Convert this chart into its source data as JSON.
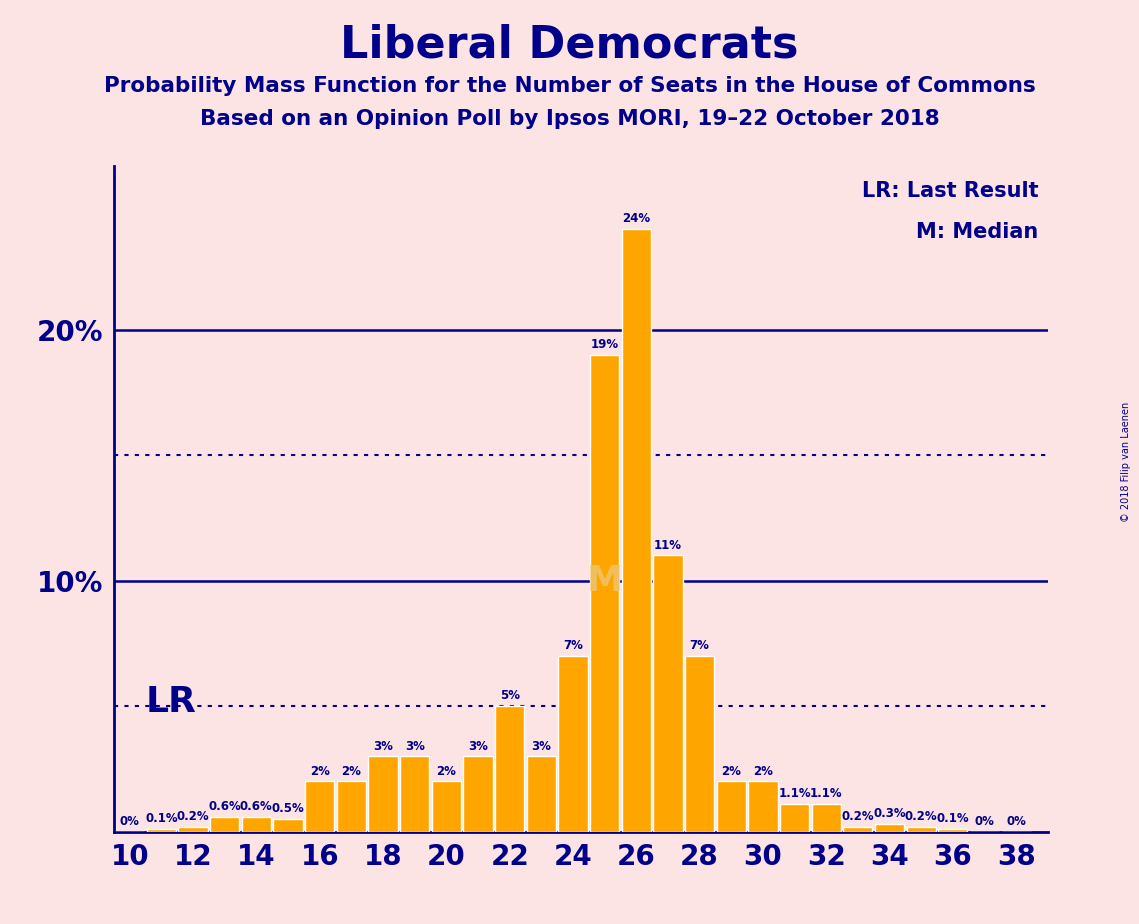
{
  "title": "Liberal Democrats",
  "subtitle1": "Probability Mass Function for the Number of Seats in the House of Commons",
  "subtitle2": "Based on an Opinion Poll by Ipsos MORI, 19–22 October 2018",
  "copyright": "© 2018 Filip van Laenen",
  "background_color": "#fce4e4",
  "bar_color": "#FFA500",
  "text_color": "#00008B",
  "seats": [
    10,
    11,
    12,
    13,
    14,
    15,
    16,
    17,
    18,
    19,
    20,
    21,
    22,
    23,
    24,
    25,
    26,
    27,
    28,
    29,
    30,
    31,
    32,
    33,
    34,
    35,
    36,
    37,
    38
  ],
  "probabilities": [
    0.0,
    0.1,
    0.2,
    0.6,
    0.6,
    0.5,
    2.0,
    2.0,
    3.0,
    3.0,
    2.0,
    3.0,
    5.0,
    3.0,
    7.0,
    19.0,
    24.0,
    11.0,
    7.0,
    2.0,
    2.0,
    1.1,
    1.1,
    0.2,
    0.3,
    0.2,
    0.1,
    0.0,
    0.0
  ],
  "labels": [
    "0%",
    "0.1%",
    "0.2%",
    "0.6%",
    "0.6%",
    "0.5%",
    "2%",
    "2%",
    "3%",
    "3%",
    "2%",
    "3%",
    "5%",
    "3%",
    "7%",
    "19%",
    "24%",
    "11%",
    "7%",
    "2%",
    "2%",
    "1.1%",
    "1.1%",
    "0.2%",
    "0.3%",
    "0.2%",
    "0.1%",
    "0%",
    "0%"
  ],
  "xtick_seats": [
    10,
    12,
    14,
    16,
    18,
    20,
    22,
    24,
    26,
    28,
    30,
    32,
    34,
    36,
    38
  ],
  "ylim": [
    0,
    26.5
  ],
  "solid_gridlines": [
    10.0,
    20.0
  ],
  "dotted_gridlines": [
    5.0,
    15.0
  ],
  "median_seat": 25,
  "lr_seat": 12,
  "legend_lr": "LR: Last Result",
  "legend_m": "M: Median"
}
